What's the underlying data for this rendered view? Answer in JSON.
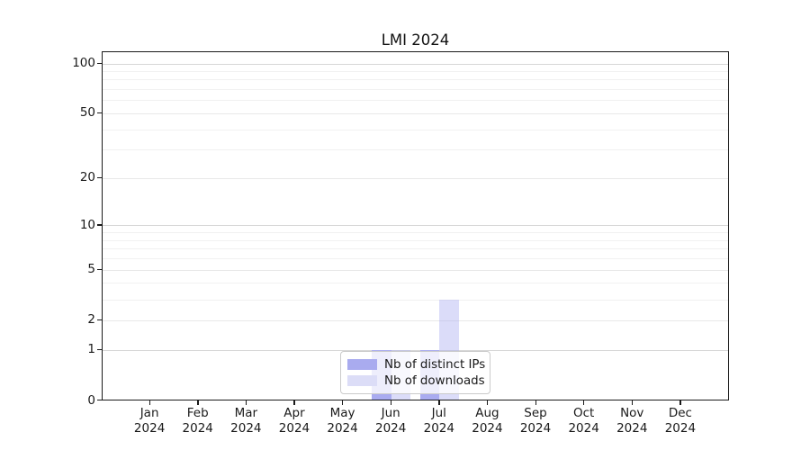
{
  "title": "LMI 2024",
  "chart_data": {
    "type": "bar",
    "title": "LMI 2024",
    "categories": [
      "Jan 2024",
      "Feb 2024",
      "Mar 2024",
      "Apr 2024",
      "May 2024",
      "Jun 2024",
      "Jul 2024",
      "Aug 2024",
      "Sep 2024",
      "Oct 2024",
      "Nov 2024",
      "Dec 2024"
    ],
    "x_axis": {
      "months": [
        "Jan",
        "Feb",
        "Mar",
        "Apr",
        "May",
        "Jun",
        "Jul",
        "Aug",
        "Sep",
        "Oct",
        "Nov",
        "Dec"
      ],
      "year": "2024"
    },
    "y_axis": {
      "scale": "log1p",
      "major_ticks": [
        0,
        1,
        10,
        100
      ],
      "labeled_ticks": [
        0,
        1,
        2,
        5,
        10,
        20,
        50,
        100
      ],
      "minor_gridlines": [
        3,
        4,
        6,
        7,
        8,
        9,
        30,
        40,
        60,
        70,
        80,
        90
      ],
      "ylim": [
        0,
        117
      ]
    },
    "series": [
      {
        "name": "Nb of distinct IPs",
        "color": "#a9abef",
        "values": [
          0,
          0,
          0,
          0,
          0,
          1,
          1,
          0,
          0,
          0,
          0,
          0
        ]
      },
      {
        "name": "Nb of downloads",
        "color": "#dcddf7",
        "values": [
          0,
          0,
          0,
          0,
          0,
          1,
          3,
          0,
          0,
          0,
          0,
          0
        ]
      }
    ],
    "legend": {
      "position": "lower center",
      "frame": true
    },
    "grid": true
  }
}
